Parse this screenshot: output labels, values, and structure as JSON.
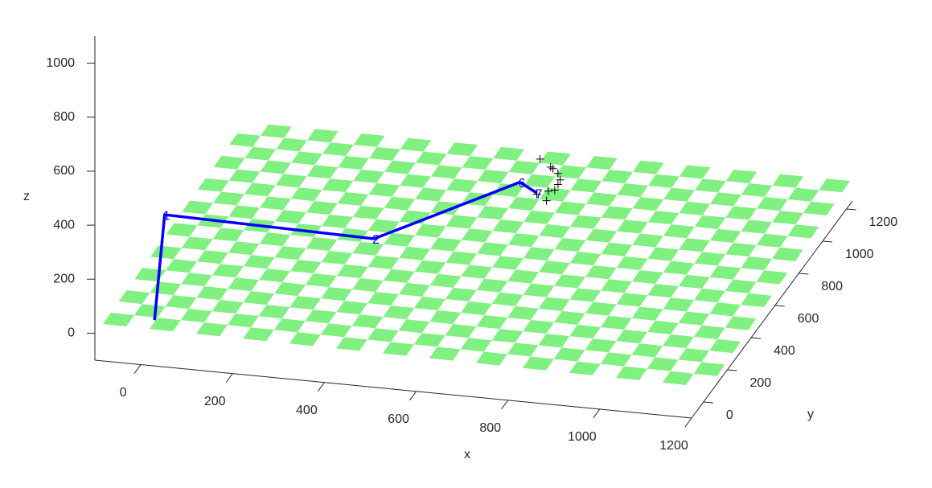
{
  "chart_data": {
    "type": "line3d",
    "xlabel": "x",
    "ylabel": "y",
    "zlabel": "z",
    "xlim": [
      -100,
      1200
    ],
    "ylim": [
      -100,
      1250
    ],
    "zlim": [
      -100,
      1100
    ],
    "xticks": [
      0,
      200,
      400,
      600,
      800,
      1000,
      1200
    ],
    "yticks": [
      0,
      200,
      400,
      600,
      800,
      1000,
      1200
    ],
    "zticks": [
      0,
      200,
      400,
      600,
      800,
      1000
    ],
    "trajectory": {
      "color": "#0000ff",
      "x": [
        4,
        26,
        482,
        800,
        837
      ],
      "y": [
        0,
        0,
        0,
        0,
        0
      ],
      "z": [
        6,
        400,
        386,
        648,
        614
      ],
      "point_labels": [
        null,
        "1",
        "2",
        "6",
        "7"
      ]
    },
    "markers": {
      "color": "#000000",
      "x": [
        844,
        867,
        872,
        883,
        888,
        883,
        876,
        862,
        837,
        858
      ],
      "y": [
        0,
        0,
        0,
        0,
        0,
        0,
        0,
        0,
        0,
        0
      ],
      "z": [
        741,
        715,
        710,
        694,
        671,
        653,
        631,
        625,
        609,
        589
      ]
    },
    "board_color": "#80f080"
  }
}
